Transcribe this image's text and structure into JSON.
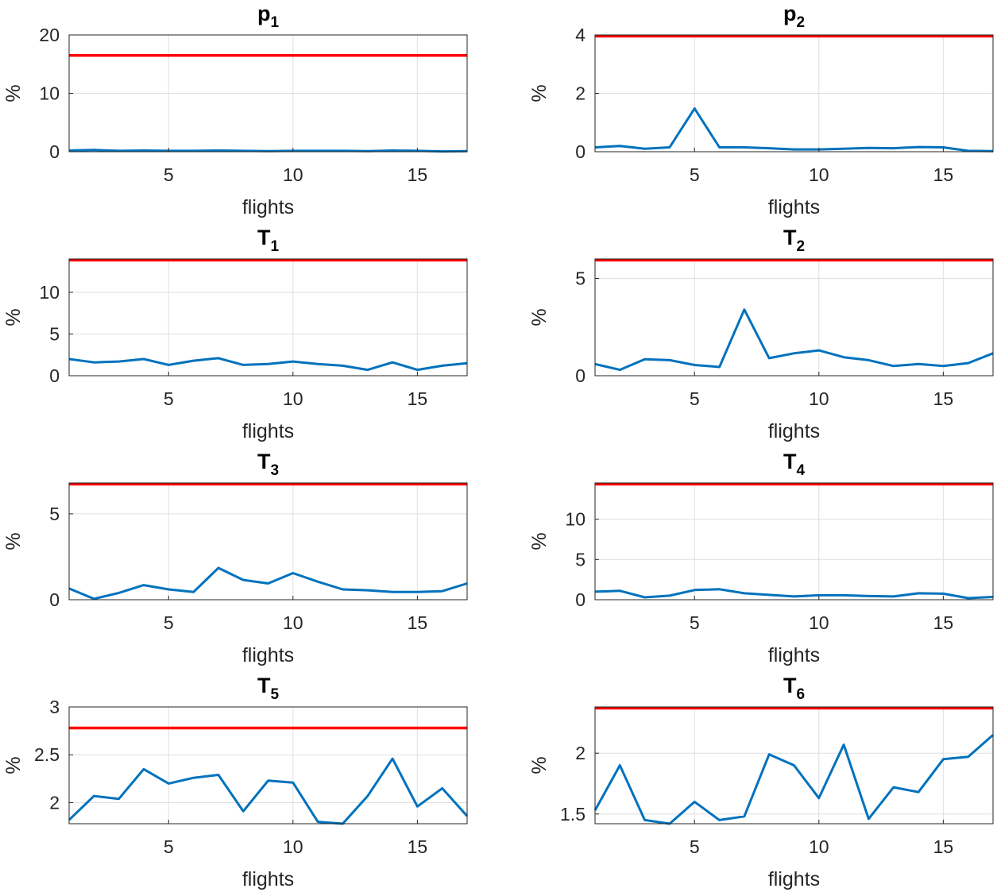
{
  "chart_data": [
    {
      "type": "line",
      "title": "p",
      "title_sub": "1",
      "xlabel": "flights",
      "ylabel": "%",
      "xlim": [
        1,
        17
      ],
      "ylim": [
        0,
        20
      ],
      "xticks": [
        5,
        10,
        15
      ],
      "yticks": [
        0,
        10,
        20
      ],
      "grid": true,
      "x": [
        1,
        2,
        3,
        4,
        5,
        6,
        7,
        8,
        9,
        10,
        11,
        12,
        13,
        14,
        15,
        16,
        17
      ],
      "series": [
        {
          "values": [
            0.2,
            0.3,
            0.15,
            0.2,
            0.15,
            0.15,
            0.2,
            0.15,
            0.1,
            0.15,
            0.15,
            0.15,
            0.1,
            0.2,
            0.15,
            0.05,
            0.1
          ],
          "color": "#0072BD"
        }
      ],
      "threshold": {
        "y": 16.5,
        "color": "#FF0000"
      }
    },
    {
      "type": "line",
      "title": "p",
      "title_sub": "2",
      "xlabel": "flights",
      "ylabel": "%",
      "xlim": [
        1,
        17
      ],
      "ylim": [
        0,
        4
      ],
      "xticks": [
        5,
        10,
        15
      ],
      "yticks": [
        0,
        2,
        4
      ],
      "grid": true,
      "x": [
        1,
        2,
        3,
        4,
        5,
        6,
        7,
        8,
        9,
        10,
        11,
        12,
        13,
        14,
        15,
        16,
        17
      ],
      "series": [
        {
          "values": [
            0.15,
            0.2,
            0.1,
            0.15,
            1.48,
            0.15,
            0.15,
            0.12,
            0.08,
            0.08,
            0.1,
            0.13,
            0.12,
            0.16,
            0.15,
            0.03,
            0.02
          ],
          "color": "#0072BD"
        }
      ],
      "threshold": {
        "y": 3.97,
        "color": "#FF0000"
      }
    },
    {
      "type": "line",
      "title": "T",
      "title_sub": "1",
      "xlabel": "flights",
      "ylabel": "%",
      "xlim": [
        1,
        17
      ],
      "ylim": [
        0,
        14
      ],
      "xticks": [
        5,
        10,
        15
      ],
      "yticks": [
        0,
        5,
        10
      ],
      "grid": true,
      "x": [
        1,
        2,
        3,
        4,
        5,
        6,
        7,
        8,
        9,
        10,
        11,
        12,
        13,
        14,
        15,
        16,
        17
      ],
      "series": [
        {
          "values": [
            2.0,
            1.6,
            1.7,
            2.0,
            1.3,
            1.8,
            2.1,
            1.3,
            1.4,
            1.7,
            1.4,
            1.2,
            0.7,
            1.6,
            0.7,
            1.2,
            1.5
          ],
          "color": "#0072BD"
        }
      ],
      "threshold": {
        "y": 14,
        "color": "#FF0000"
      }
    },
    {
      "type": "line",
      "title": "T",
      "title_sub": "2",
      "xlabel": "flights",
      "ylabel": "%",
      "xlim": [
        1,
        17
      ],
      "ylim": [
        0,
        6
      ],
      "xticks": [
        5,
        10,
        15
      ],
      "yticks": [
        0,
        5
      ],
      "grid": true,
      "x": [
        1,
        2,
        3,
        4,
        5,
        6,
        7,
        8,
        9,
        10,
        11,
        12,
        13,
        14,
        15,
        16,
        17
      ],
      "series": [
        {
          "values": [
            0.6,
            0.3,
            0.85,
            0.8,
            0.55,
            0.45,
            3.4,
            0.9,
            1.15,
            1.3,
            0.95,
            0.8,
            0.5,
            0.6,
            0.5,
            0.65,
            1.15
          ],
          "color": "#0072BD"
        }
      ],
      "threshold": {
        "y": 6,
        "color": "#FF0000"
      }
    },
    {
      "type": "line",
      "title": "T",
      "title_sub": "3",
      "xlabel": "flights",
      "ylabel": "%",
      "xlim": [
        1,
        17
      ],
      "ylim": [
        0,
        6.8
      ],
      "xticks": [
        5,
        10,
        15
      ],
      "yticks": [
        0,
        5
      ],
      "grid": true,
      "x": [
        1,
        2,
        3,
        4,
        5,
        6,
        7,
        8,
        9,
        10,
        11,
        12,
        13,
        14,
        15,
        16,
        17
      ],
      "series": [
        {
          "values": [
            0.65,
            0.05,
            0.4,
            0.85,
            0.6,
            0.45,
            1.85,
            1.15,
            0.95,
            1.55,
            1.05,
            0.6,
            0.55,
            0.45,
            0.45,
            0.5,
            0.95
          ],
          "color": "#0072BD"
        }
      ],
      "threshold": {
        "y": 6.8,
        "color": "#FF0000"
      }
    },
    {
      "type": "line",
      "title": "T",
      "title_sub": "4",
      "xlabel": "flights",
      "ylabel": "%",
      "xlim": [
        1,
        17
      ],
      "ylim": [
        0,
        14.5
      ],
      "xticks": [
        5,
        10,
        15
      ],
      "yticks": [
        0,
        5,
        10
      ],
      "grid": true,
      "x": [
        1,
        2,
        3,
        4,
        5,
        6,
        7,
        8,
        9,
        10,
        11,
        12,
        13,
        14,
        15,
        16,
        17
      ],
      "series": [
        {
          "values": [
            1.0,
            1.1,
            0.3,
            0.5,
            1.2,
            1.3,
            0.8,
            0.6,
            0.4,
            0.55,
            0.55,
            0.45,
            0.4,
            0.8,
            0.75,
            0.2,
            0.35
          ],
          "color": "#0072BD"
        }
      ],
      "threshold": {
        "y": 14.5,
        "color": "#FF0000"
      }
    },
    {
      "type": "line",
      "title": "T",
      "title_sub": "5",
      "xlabel": "flights",
      "ylabel": "%",
      "xlim": [
        1,
        17
      ],
      "ylim": [
        1.78,
        3
      ],
      "xticks": [
        5,
        10,
        15
      ],
      "yticks": [
        2,
        2.5,
        3
      ],
      "grid": true,
      "x": [
        1,
        2,
        3,
        4,
        5,
        6,
        7,
        8,
        9,
        10,
        11,
        12,
        13,
        14,
        15,
        16,
        17
      ],
      "series": [
        {
          "values": [
            1.82,
            2.07,
            2.04,
            2.35,
            2.2,
            2.26,
            2.29,
            1.91,
            2.23,
            2.21,
            1.8,
            1.78,
            2.07,
            2.46,
            1.96,
            2.15,
            1.86
          ],
          "color": "#0072BD"
        }
      ],
      "threshold": {
        "y": 2.78,
        "color": "#FF0000"
      }
    },
    {
      "type": "line",
      "title": "T",
      "title_sub": "6",
      "xlabel": "flights",
      "ylabel": "%",
      "xlim": [
        1,
        17
      ],
      "ylim": [
        1.42,
        2.38
      ],
      "xticks": [
        5,
        10,
        15
      ],
      "yticks": [
        1.5,
        2
      ],
      "grid": true,
      "x": [
        1,
        2,
        3,
        4,
        5,
        6,
        7,
        8,
        9,
        10,
        11,
        12,
        13,
        14,
        15,
        16,
        17
      ],
      "series": [
        {
          "values": [
            1.53,
            1.9,
            1.45,
            1.42,
            1.6,
            1.45,
            1.48,
            1.99,
            1.9,
            1.63,
            2.07,
            1.46,
            1.72,
            1.68,
            1.95,
            1.97,
            2.15
          ],
          "color": "#0072BD"
        }
      ],
      "threshold": {
        "y": 2.38,
        "color": "#FF0000"
      }
    }
  ]
}
